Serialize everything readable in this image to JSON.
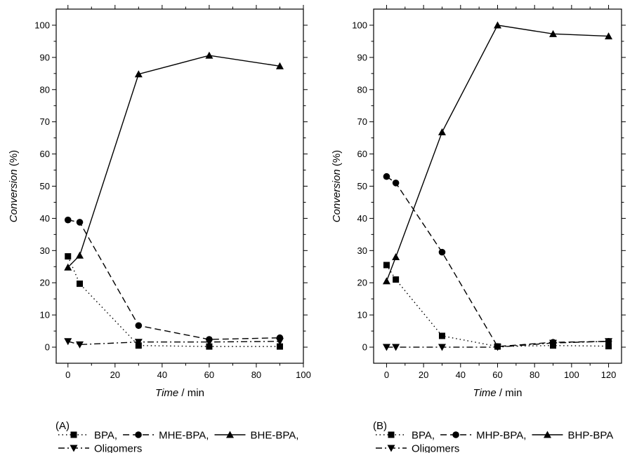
{
  "chart_data": [
    {
      "type": "line",
      "panel_label": "(A)",
      "xlabel": {
        "italic": "Time",
        "rest": " / min"
      },
      "ylabel": {
        "italic": "Conversion",
        "rest": " (%)"
      },
      "xlim": [
        -5,
        100
      ],
      "ylim": [
        -5,
        105
      ],
      "xticks": [
        0,
        20,
        40,
        60,
        80,
        100
      ],
      "yticks": [
        0,
        10,
        20,
        30,
        40,
        50,
        60,
        70,
        80,
        90,
        100
      ],
      "series": [
        {
          "name": "BPA",
          "marker": "square",
          "line": "dotted",
          "x": [
            0,
            5,
            30,
            60,
            90
          ],
          "y": [
            28.2,
            19.7,
            0.5,
            0.2,
            0.2
          ]
        },
        {
          "name": "MHE-BPA",
          "marker": "circle",
          "line": "dashed",
          "x": [
            0,
            5,
            30,
            60,
            90
          ],
          "y": [
            39.5,
            38.8,
            6.7,
            2.4,
            2.9
          ]
        },
        {
          "name": "BHE-BPA",
          "marker": "triangle-up",
          "line": "solid",
          "x": [
            0,
            5,
            30,
            60,
            90
          ],
          "y": [
            24.8,
            28.5,
            84.8,
            90.6,
            87.3
          ]
        },
        {
          "name": "Oligomers",
          "marker": "triangle-down",
          "line": "dashdot",
          "x": [
            0,
            5,
            30,
            60,
            90
          ],
          "y": [
            1.8,
            0.8,
            1.6,
            1.6,
            1.8
          ]
        }
      ],
      "legend_rows": [
        [
          {
            "series": 0,
            "label": "BPA,"
          },
          {
            "series": 1,
            "label": "MHE-BPA,"
          },
          {
            "series": 2,
            "label": "BHE-BPA,"
          }
        ],
        [
          {
            "series": 3,
            "label": "Oligomers"
          }
        ]
      ]
    },
    {
      "type": "line",
      "panel_label": "(B)",
      "xlabel": {
        "italic": "Time",
        "rest": " / min"
      },
      "ylabel": {
        "italic": "Conversion",
        "rest": " (%)"
      },
      "xlim": [
        -7,
        127
      ],
      "ylim": [
        -5,
        105
      ],
      "xticks": [
        0,
        20,
        40,
        60,
        80,
        100,
        120
      ],
      "yticks": [
        0,
        10,
        20,
        30,
        40,
        50,
        60,
        70,
        80,
        90,
        100
      ],
      "series": [
        {
          "name": "BPA",
          "marker": "square",
          "line": "dotted",
          "x": [
            0,
            5,
            30,
            60,
            90,
            120
          ],
          "y": [
            25.5,
            21.0,
            3.5,
            0.2,
            0.5,
            0.3
          ]
        },
        {
          "name": "MHP-BPA",
          "marker": "circle",
          "line": "dashed",
          "x": [
            0,
            5,
            30,
            60,
            90,
            120
          ],
          "y": [
            53.0,
            51.0,
            29.5,
            0.2,
            1.5,
            1.8
          ]
        },
        {
          "name": "BHP-BPA",
          "marker": "triangle-up",
          "line": "solid",
          "x": [
            0,
            5,
            30,
            60,
            90,
            120
          ],
          "y": [
            20.5,
            28.0,
            66.8,
            100.0,
            97.3,
            96.6
          ]
        },
        {
          "name": "Oligomers",
          "marker": "triangle-down",
          "line": "dashdot",
          "x": [
            0,
            5,
            30,
            60,
            90,
            120
          ],
          "y": [
            0.0,
            0.0,
            0.0,
            0.0,
            1.3,
            1.8
          ]
        }
      ],
      "legend_rows": [
        [
          {
            "series": 0,
            "label": "BPA,"
          },
          {
            "series": 1,
            "label": "MHP-BPA,"
          },
          {
            "series": 2,
            "label": "BHP-BPA"
          }
        ],
        [
          {
            "series": 3,
            "label": "Oligomers"
          }
        ]
      ]
    }
  ]
}
